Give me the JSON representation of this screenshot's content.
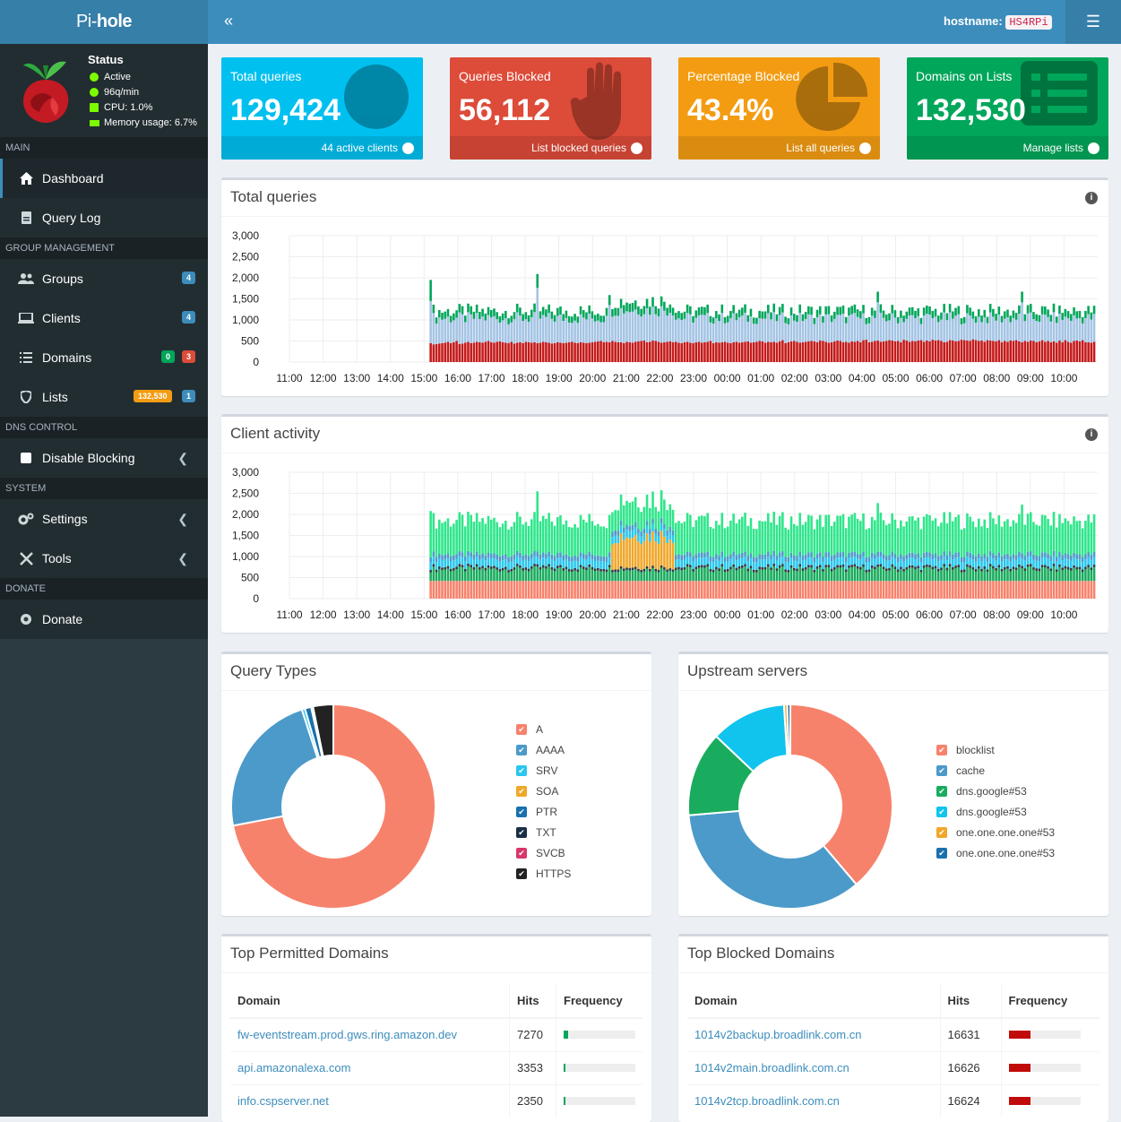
{
  "brand": {
    "prefix": "Pi-",
    "bold": "hole"
  },
  "status": {
    "title": "Status",
    "active": "Active",
    "rate": "96q/min",
    "cpu": "CPU: 1.0%",
    "memory": "Memory usage: 6.7%"
  },
  "topbar": {
    "hostname_label": "hostname:",
    "hostname": "HS4RPi"
  },
  "sidebar": {
    "sections": {
      "main": "MAIN",
      "group": "GROUP MANAGEMENT",
      "dns": "DNS CONTROL",
      "system": "SYSTEM",
      "donate": "DONATE"
    },
    "items": {
      "dashboard": "Dashboard",
      "querylog": "Query Log",
      "groups": "Groups",
      "clients": "Clients",
      "domains": "Domains",
      "lists": "Lists",
      "disable": "Disable Blocking",
      "settings": "Settings",
      "tools": "Tools",
      "donate": "Donate"
    },
    "badges": {
      "groups": "4",
      "clients": "4",
      "domains_a": "0",
      "domains_b": "3",
      "lists_a": "132,530",
      "lists_b": "1"
    }
  },
  "stats": [
    {
      "label": "Total queries",
      "value": "129,424",
      "footer": "44 active clients",
      "color": "#00c0ef",
      "icon": "globe-icon"
    },
    {
      "label": "Queries Blocked",
      "value": "56,112",
      "footer": "List blocked queries",
      "color": "#dd4b39",
      "icon": "hand-icon"
    },
    {
      "label": "Percentage Blocked",
      "value": "43.4%",
      "footer": "List all queries",
      "color": "#f39c12",
      "icon": "pie-icon"
    },
    {
      "label": "Domains on Lists",
      "value": "132,530",
      "footer": "Manage lists",
      "color": "#00a65a",
      "icon": "list-icon"
    }
  ],
  "cards": {
    "total": "Total queries",
    "client": "Client activity",
    "types": "Query Types",
    "upstream": "Upstream servers",
    "permitted": "Top Permitted Domains",
    "blocked": "Top Blocked Domains"
  },
  "chart_data": [
    {
      "type": "bar",
      "title": "Total queries",
      "ylim": [
        0,
        3000
      ],
      "yticks": [
        "3,000",
        "2,500",
        "2,000",
        "1,500",
        "1,000",
        "500",
        "0"
      ],
      "xticks": [
        "11:00",
        "12:00",
        "13:00",
        "14:00",
        "15:00",
        "16:00",
        "17:00",
        "18:00",
        "19:00",
        "20:00",
        "21:00",
        "22:00",
        "23:00",
        "00:00",
        "01:00",
        "02:00",
        "03:00",
        "04:00",
        "05:00",
        "06:00",
        "07:00",
        "08:00",
        "09:00",
        "10:00"
      ],
      "series": [
        {
          "values": [
            450,
            420,
            430,
            440,
            450,
            460,
            480,
            450,
            470,
            500,
            430,
            440,
            460,
            480,
            450,
            460,
            480,
            470,
            460,
            480,
            500,
            470,
            460,
            480,
            490,
            470,
            460,
            450,
            480,
            440,
            460,
            470,
            450,
            480,
            470,
            460,
            470,
            450,
            460,
            480,
            470,
            460,
            440,
            450,
            470,
            460,
            450,
            460,
            470,
            480,
            460,
            450,
            470,
            460,
            450,
            460,
            470,
            480,
            490,
            500,
            470,
            480,
            470,
            500,
            480,
            470,
            470,
            450,
            480,
            470,
            460,
            480,
            490,
            500,
            510,
            470,
            480,
            510,
            500,
            480,
            460,
            470,
            480,
            490,
            470,
            480,
            460,
            450,
            470,
            480,
            460,
            450,
            470,
            480,
            460,
            470,
            480,
            500,
            450,
            470,
            460,
            470,
            480,
            460,
            450,
            470,
            480,
            460,
            470,
            480,
            490,
            460,
            470,
            480,
            500,
            490,
            460,
            480,
            470,
            480,
            460,
            490,
            520,
            450,
            470,
            490,
            500,
            480,
            460,
            470,
            480,
            490,
            500,
            490,
            470,
            510,
            500,
            480,
            460,
            470,
            490,
            510,
            500,
            470,
            480,
            460,
            490,
            480,
            500,
            470,
            520,
            530,
            470,
            480,
            500,
            510,
            480,
            490,
            500,
            520,
            510,
            490,
            500,
            470,
            530,
            510,
            480,
            500,
            490,
            510,
            520,
            480,
            510,
            490,
            530,
            510,
            520,
            500,
            470,
            480,
            520,
            510,
            490,
            500,
            530,
            520,
            510,
            500,
            540,
            520,
            500,
            510,
            480,
            520,
            510,
            500,
            490,
            520,
            470,
            500,
            480,
            510,
            500,
            520,
            490,
            470,
            500,
            480,
            510,
            500,
            470,
            490,
            520,
            480,
            500,
            470,
            490,
            460,
            510,
            470,
            520,
            480,
            460,
            500,
            510,
            490,
            520,
            470,
            470,
            460,
            480
          ]
        }
      ]
    },
    {
      "type": "bar",
      "title": "Client activity",
      "ylim": [
        0,
        3000
      ],
      "yticks": [
        "3,000",
        "2,500",
        "2,000",
        "1,500",
        "1,000",
        "500",
        "0"
      ],
      "xticks": [
        "11:00",
        "12:00",
        "13:00",
        "14:00",
        "15:00",
        "16:00",
        "17:00",
        "18:00",
        "19:00",
        "20:00",
        "21:00",
        "22:00",
        "23:00",
        "00:00",
        "01:00",
        "02:00",
        "03:00",
        "04:00",
        "05:00",
        "06:00",
        "07:00",
        "08:00",
        "09:00",
        "10:00"
      ]
    },
    {
      "type": "pie",
      "title": "Query Types",
      "categories": [
        "A",
        "AAAA",
        "SRV",
        "SOA",
        "PTR",
        "TXT",
        "SVCB",
        "HTTPS"
      ],
      "values": [
        72,
        23,
        0.5,
        0,
        1,
        0.3,
        0,
        3.2
      ],
      "colors": [
        "#f7826c",
        "#4c9ac9",
        "#29c7ee",
        "#f0a72a",
        "#1971ad",
        "#1a2f44",
        "#d8376b",
        "#222"
      ]
    },
    {
      "type": "pie",
      "title": "Upstream servers",
      "categories": [
        "blocklist",
        "cache",
        "dns.google#53",
        "dns.google#53",
        "one.one.one.one#53",
        "one.one.one.one#53"
      ],
      "values": [
        39,
        35,
        13.5,
        12,
        0.5,
        0.5
      ],
      "colors": [
        "#f7826c",
        "#4c9ac9",
        "#1aac5e",
        "#10c4ee",
        "#f0a72a",
        "#1971ad"
      ]
    }
  ],
  "permitted": {
    "headers": [
      "Domain",
      "Hits",
      "Frequency"
    ],
    "rows": [
      {
        "domain": "fw-eventstream.prod.gws.ring.amazon.dev",
        "hits": "7270",
        "freq": 0.06
      },
      {
        "domain": "api.amazonalexa.com",
        "hits": "3353",
        "freq": 0.03
      },
      {
        "domain": "info.cspserver.net",
        "hits": "2350",
        "freq": 0.02
      }
    ]
  },
  "blocked": {
    "headers": [
      "Domain",
      "Hits",
      "Frequency"
    ],
    "rows": [
      {
        "domain": "1014v2backup.broadlink.com.cn",
        "hits": "16631",
        "freq": 0.3
      },
      {
        "domain": "1014v2main.broadlink.com.cn",
        "hits": "16626",
        "freq": 0.3
      },
      {
        "domain": "1014v2tcp.broadlink.com.cn",
        "hits": "16624",
        "freq": 0.3
      }
    ]
  }
}
